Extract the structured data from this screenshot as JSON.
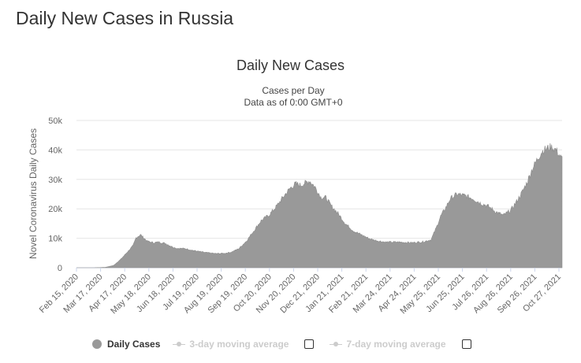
{
  "page": {
    "title": "Daily New Cases in Russia"
  },
  "chart_data": {
    "type": "area",
    "title": "Daily New Cases",
    "subtitle_lines": [
      "Cases per Day",
      "Data as of 0:00 GMT+0"
    ],
    "ylabel": "Novel Coronavirus Daily Cases",
    "ylim": [
      0,
      50000
    ],
    "yticks": [
      0,
      10000,
      20000,
      30000,
      40000,
      50000
    ],
    "ytick_labels": [
      "0",
      "10k",
      "20k",
      "30k",
      "40k",
      "50k"
    ],
    "xlim": [
      "2020-02-15",
      "2021-11-28"
    ],
    "xtick_labels": [
      "Feb 15, 2020",
      "Mar 17, 2020",
      "Apr 17, 2020",
      "May 18, 2020",
      "Jun 18, 2020",
      "Jul 19, 2020",
      "Aug 19, 2020",
      "Sep 19, 2020",
      "Oct 20, 2020",
      "Nov 20, 2020",
      "Dec 21, 2020",
      "Jan 21, 2021",
      "Feb 21, 2021",
      "Mar 24, 2021",
      "Apr 24, 2021",
      "May 25, 2021",
      "Jun 25, 2021",
      "Jul 26, 2021",
      "Aug 26, 2021",
      "Sep 26, 2021",
      "Oct 27, 2021"
    ],
    "grid": true,
    "color": "#999999",
    "series": [
      {
        "name": "Daily Cases",
        "points": [
          [
            "2020-02-15",
            0
          ],
          [
            "2020-03-10",
            0
          ],
          [
            "2020-03-25",
            150
          ],
          [
            "2020-04-05",
            800
          ],
          [
            "2020-04-15",
            3000
          ],
          [
            "2020-04-25",
            5800
          ],
          [
            "2020-05-01",
            7500
          ],
          [
            "2020-05-05",
            10200
          ],
          [
            "2020-05-11",
            11200
          ],
          [
            "2020-05-20",
            9000
          ],
          [
            "2020-05-28",
            8500
          ],
          [
            "2020-06-05",
            8700
          ],
          [
            "2020-06-14",
            8200
          ],
          [
            "2020-06-21",
            7300
          ],
          [
            "2020-06-28",
            6600
          ],
          [
            "2020-07-10",
            6500
          ],
          [
            "2020-07-22",
            5800
          ],
          [
            "2020-08-05",
            5200
          ],
          [
            "2020-08-20",
            4800
          ],
          [
            "2020-09-01",
            4900
          ],
          [
            "2020-09-10",
            5300
          ],
          [
            "2020-09-20",
            6500
          ],
          [
            "2020-09-30",
            9000
          ],
          [
            "2020-10-10",
            12500
          ],
          [
            "2020-10-20",
            16000
          ],
          [
            "2020-10-31",
            18000
          ],
          [
            "2020-11-10",
            21000
          ],
          [
            "2020-11-20",
            24500
          ],
          [
            "2020-11-28",
            27000
          ],
          [
            "2020-12-05",
            28500
          ],
          [
            "2020-12-12",
            28000
          ],
          [
            "2020-12-20",
            29000
          ],
          [
            "2020-12-24",
            29500
          ],
          [
            "2020-12-31",
            27500
          ],
          [
            "2021-01-08",
            24000
          ],
          [
            "2021-01-15",
            23800
          ],
          [
            "2021-01-22",
            21000
          ],
          [
            "2021-01-31",
            18500
          ],
          [
            "2021-02-10",
            15000
          ],
          [
            "2021-02-21",
            12500
          ],
          [
            "2021-03-05",
            11000
          ],
          [
            "2021-03-15",
            9800
          ],
          [
            "2021-03-24",
            9200
          ],
          [
            "2021-04-05",
            8700
          ],
          [
            "2021-04-24",
            8700
          ],
          [
            "2021-05-10",
            8500
          ],
          [
            "2021-05-25",
            8800
          ],
          [
            "2021-06-05",
            9500
          ],
          [
            "2021-06-12",
            13500
          ],
          [
            "2021-06-18",
            17500
          ],
          [
            "2021-06-25",
            20500
          ],
          [
            "2021-07-01",
            23500
          ],
          [
            "2021-07-10",
            25000
          ],
          [
            "2021-07-20",
            24500
          ],
          [
            "2021-07-31",
            23500
          ],
          [
            "2021-08-10",
            22000
          ],
          [
            "2021-08-20",
            21000
          ],
          [
            "2021-08-31",
            19000
          ],
          [
            "2021-09-10",
            17800
          ],
          [
            "2021-09-20",
            19500
          ],
          [
            "2021-09-28",
            22500
          ],
          [
            "2021-10-05",
            25500
          ],
          [
            "2021-10-12",
            29000
          ],
          [
            "2021-10-18",
            33000
          ],
          [
            "2021-10-25",
            36500
          ],
          [
            "2021-11-01",
            39500
          ],
          [
            "2021-11-07",
            40500
          ],
          [
            "2021-11-13",
            41000
          ],
          [
            "2021-11-20",
            40000
          ],
          [
            "2021-11-26",
            37500
          ],
          [
            "2021-11-28",
            37000
          ]
        ]
      }
    ]
  },
  "legend": {
    "items": [
      {
        "label": "Daily Cases",
        "active": true
      },
      {
        "label": "3-day moving average",
        "active": false
      },
      {
        "label": "7-day moving average",
        "active": false
      }
    ]
  }
}
